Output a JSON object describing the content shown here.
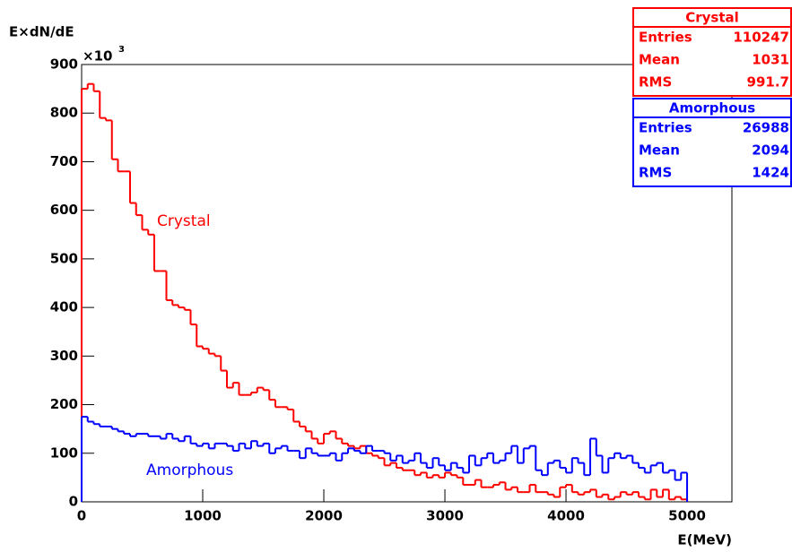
{
  "chart_data": {
    "type": "histogram",
    "y_axis_label": "E×dN/dE",
    "y_multiplier": "×10",
    "y_multiplier_exp": "3",
    "x_axis_label": "E(MeV)",
    "xlim": [
      0,
      5370
    ],
    "ylim": [
      0,
      900
    ],
    "xticks": [
      0,
      1000,
      2000,
      3000,
      4000,
      5000
    ],
    "yticks": [
      0,
      100,
      200,
      300,
      400,
      500,
      600,
      700,
      800,
      900
    ],
    "bins": [
      0,
      50,
      100,
      150,
      200,
      250,
      300,
      350,
      400,
      450,
      500,
      550,
      600,
      650,
      700,
      750,
      800,
      850,
      900,
      950,
      1000,
      1050,
      1100,
      1150,
      1200,
      1250,
      1300,
      1350,
      1400,
      1450,
      1500,
      1550,
      1600,
      1650,
      1700,
      1750,
      1800,
      1850,
      1900,
      1950,
      2000,
      2050,
      2100,
      2150,
      2200,
      2250,
      2300,
      2350,
      2400,
      2450,
      2500,
      2550,
      2600,
      2650,
      2700,
      2750,
      2800,
      2850,
      2900,
      2950,
      3000,
      3050,
      3100,
      3150,
      3200,
      3250,
      3300,
      3350,
      3400,
      3450,
      3500,
      3550,
      3600,
      3650,
      3700,
      3750,
      3800,
      3850,
      3900,
      3950,
      4000,
      4050,
      4100,
      4150,
      4200,
      4250,
      4300,
      4350,
      4400,
      4450,
      4500,
      4550,
      4600,
      4650,
      4700,
      4750,
      4800,
      4850,
      4900,
      4950,
      5000
    ],
    "series": [
      {
        "name": "Crystal",
        "color": "#ff0000",
        "stats": [
          {
            "label": "Entries",
            "value": 110247
          },
          {
            "label": "Mean",
            "value": 1031
          },
          {
            "label": "RMS",
            "value": 991.7
          }
        ],
        "values": [
          850,
          860,
          845,
          790,
          785,
          705,
          680,
          680,
          615,
          590,
          560,
          550,
          475,
          475,
          415,
          405,
          400,
          395,
          365,
          320,
          315,
          305,
          300,
          270,
          235,
          245,
          220,
          220,
          225,
          235,
          230,
          210,
          195,
          195,
          190,
          165,
          155,
          145,
          130,
          120,
          140,
          145,
          130,
          120,
          115,
          110,
          115,
          100,
          95,
          90,
          75,
          80,
          70,
          65,
          65,
          55,
          60,
          50,
          55,
          50,
          60,
          55,
          50,
          35,
          35,
          45,
          30,
          30,
          35,
          40,
          25,
          30,
          20,
          20,
          35,
          20,
          20,
          15,
          10,
          30,
          35,
          20,
          15,
          20,
          25,
          10,
          15,
          5,
          10,
          20,
          15,
          20,
          10,
          5,
          25,
          10,
          25,
          5,
          10,
          5
        ]
      },
      {
        "name": "Amorphous",
        "color": "#0000ff",
        "stats": [
          {
            "label": "Entries",
            "value": 26988
          },
          {
            "label": "Mean",
            "value": 2094
          },
          {
            "label": "RMS",
            "value": 1424
          }
        ],
        "values": [
          175,
          165,
          160,
          155,
          155,
          150,
          145,
          140,
          135,
          140,
          140,
          135,
          135,
          130,
          140,
          130,
          125,
          135,
          120,
          115,
          120,
          110,
          120,
          120,
          115,
          105,
          120,
          110,
          125,
          115,
          120,
          100,
          110,
          115,
          105,
          105,
          90,
          110,
          100,
          95,
          95,
          100,
          85,
          100,
          110,
          105,
          100,
          115,
          105,
          105,
          100,
          85,
          95,
          80,
          85,
          100,
          80,
          70,
          90,
          75,
          65,
          80,
          70,
          60,
          95,
          75,
          90,
          100,
          80,
          85,
          100,
          115,
          80,
          110,
          115,
          65,
          55,
          80,
          85,
          70,
          60,
          90,
          80,
          55,
          130,
          95,
          60,
          90,
          100,
          90,
          95,
          80,
          70,
          60,
          75,
          80,
          60,
          65,
          45,
          60
        ]
      }
    ]
  }
}
